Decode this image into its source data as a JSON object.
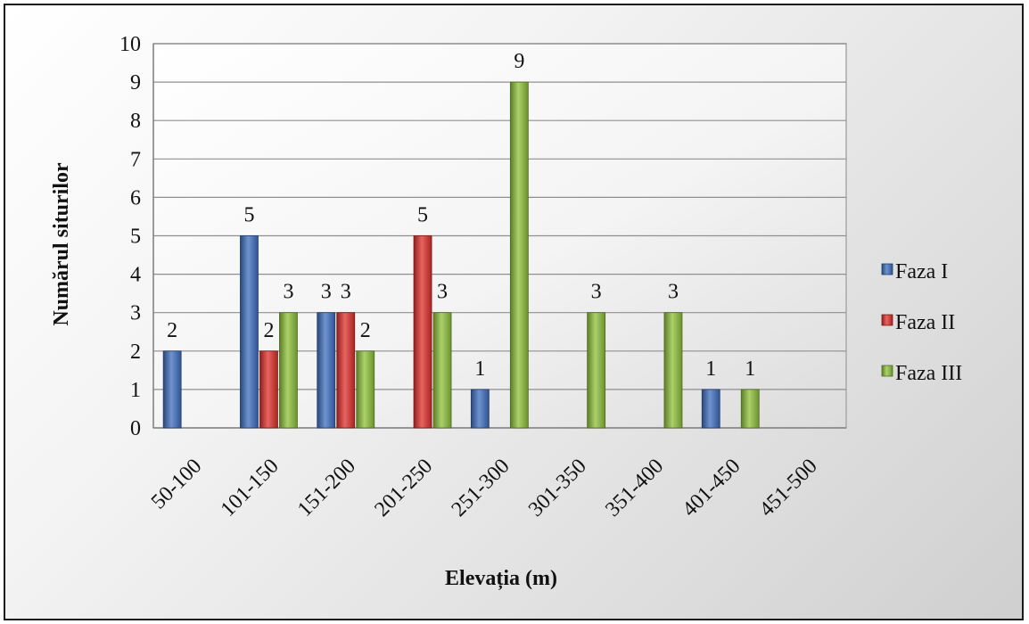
{
  "chart_data": {
    "type": "bar",
    "title": "",
    "xlabel": "Elevația (m)",
    "ylabel": "Numărul siturilor",
    "ylim": [
      0,
      10
    ],
    "yticks": [
      0,
      1,
      2,
      3,
      4,
      5,
      6,
      7,
      8,
      9,
      10
    ],
    "categories": [
      "50-100",
      "101-150",
      "151-200",
      "201-250",
      "251-300",
      "301-350",
      "351-400",
      "401-450",
      "451-500"
    ],
    "series": [
      {
        "name": "Faza I",
        "color": "#3f6fc0",
        "values": [
          2,
          5,
          3,
          0,
          1,
          0,
          0,
          1,
          0
        ]
      },
      {
        "name": "Faza II",
        "color": "#e0302b",
        "values": [
          0,
          2,
          3,
          5,
          0,
          0,
          0,
          0,
          0
        ]
      },
      {
        "name": "Faza III",
        "color": "#8fc23a",
        "values": [
          0,
          3,
          2,
          3,
          9,
          3,
          3,
          1,
          0
        ]
      }
    ],
    "grid": true,
    "legend": "right"
  }
}
